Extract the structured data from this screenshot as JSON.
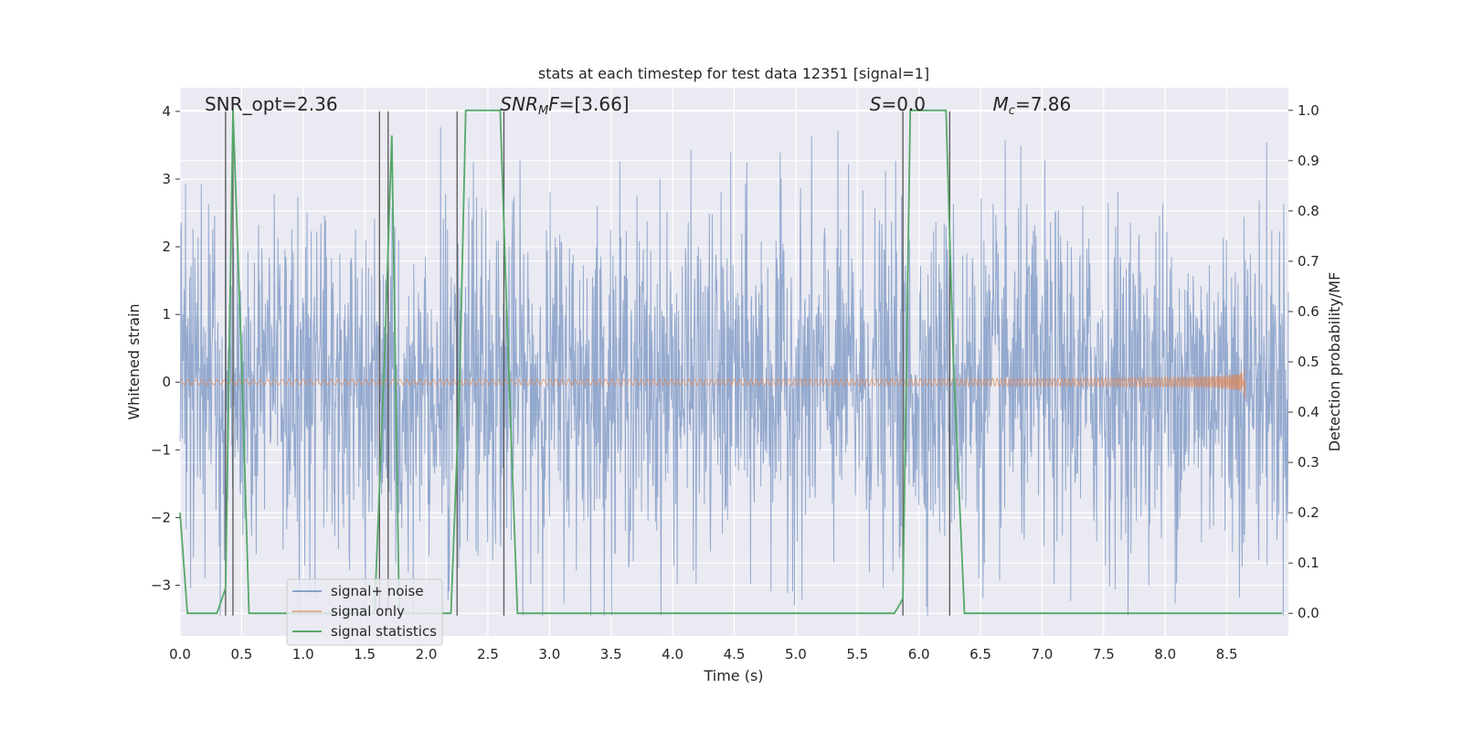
{
  "chart_data": {
    "type": "line",
    "title": "stats at each timestep for test data 12351 [signal=1]",
    "xlabel": "Time (s)",
    "ylabel_left": "Whitened strain",
    "ylabel_right": "Detection probability/MF",
    "xlim": [
      0.0,
      9.0
    ],
    "ylim_left": [
      -3.75,
      4.35
    ],
    "ylim_right": [
      -0.045,
      1.045
    ],
    "x_ticks": [
      "0.0",
      "0.5",
      "1.0",
      "1.5",
      "2.0",
      "2.5",
      "3.0",
      "3.5",
      "4.0",
      "4.5",
      "5.0",
      "5.5",
      "6.0",
      "6.5",
      "7.0",
      "7.5",
      "8.0",
      "8.5"
    ],
    "y_ticks_left": [
      "−3",
      "−2",
      "−1",
      "0",
      "1",
      "2",
      "3",
      "4"
    ],
    "y_ticks_right": [
      "0.0",
      "0.1",
      "0.2",
      "0.3",
      "0.4",
      "0.5",
      "0.6",
      "0.7",
      "0.8",
      "0.9",
      "1.0"
    ],
    "grid": true,
    "legend_position": "lower-left",
    "annotations": [
      {
        "text": "SNR_opt=2.36",
        "x": 0.2,
        "y": 4.0
      },
      {
        "text": "SNR_MF=[3.66]",
        "x": 2.6,
        "y": 4.0
      },
      {
        "text": "S=0.0",
        "x": 5.6,
        "y": 4.0
      },
      {
        "text": "M_c=7.86",
        "x": 6.6,
        "y": 4.0
      }
    ],
    "series": [
      {
        "name": "signal+ noise",
        "color": "#4C72B0",
        "axis": "left",
        "kind": "noise",
        "amplitude_std": 1.0,
        "t_start": 0.0,
        "t_end": 9.0
      },
      {
        "name": "signal only",
        "color": "#DD8452",
        "axis": "left",
        "kind": "chirp",
        "t_start": 0.0,
        "t_end": 8.65,
        "peak_amplitude": 0.25
      },
      {
        "name": "signal statistics",
        "color": "#55A868",
        "axis": "right",
        "x": [
          0.0,
          0.06,
          0.1,
          0.3,
          0.37,
          0.43,
          0.5,
          0.56,
          1.58,
          1.66,
          1.72,
          1.78,
          2.2,
          2.27,
          2.32,
          2.6,
          2.66,
          2.74,
          5.8,
          5.85,
          5.87,
          5.93,
          6.22,
          6.28,
          6.37,
          8.95
        ],
        "y": [
          0.2,
          0.0,
          0.0,
          0.0,
          0.05,
          1.0,
          0.5,
          0.0,
          0.0,
          0.5,
          0.95,
          0.0,
          0.0,
          0.45,
          1.0,
          1.0,
          0.55,
          0.0,
          0.0,
          0.02,
          0.03,
          1.0,
          1.0,
          0.5,
          0.0,
          0.0
        ]
      }
    ],
    "vertical_lines": {
      "color": "#555555",
      "x": [
        0.37,
        0.43,
        1.62,
        1.69,
        2.25,
        2.63,
        5.87,
        6.25
      ]
    }
  }
}
